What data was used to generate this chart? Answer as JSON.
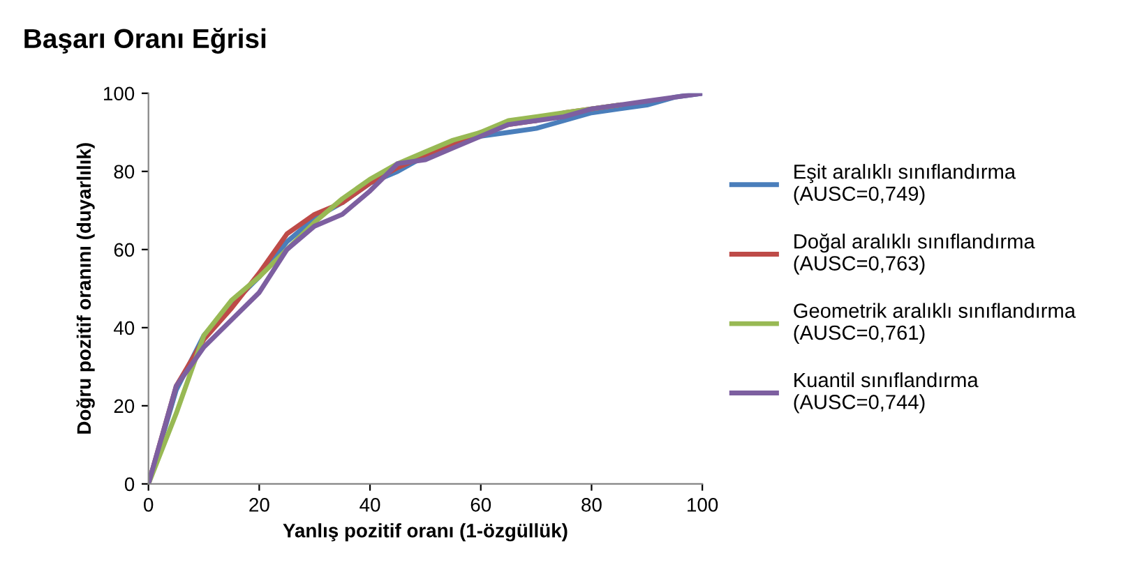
{
  "chart_data": {
    "type": "line",
    "title": "Başarı Oranı Eğrisi",
    "xlabel": "Yanlış pozitif oranı (1-özgüllük)",
    "ylabel": "Doğru pozitif oranını (duyarlılık)",
    "x": [
      0,
      5,
      10,
      15,
      20,
      25,
      30,
      35,
      40,
      45,
      50,
      55,
      60,
      65,
      70,
      75,
      80,
      85,
      90,
      95,
      100
    ],
    "xlim": [
      0,
      100
    ],
    "ylim": [
      0,
      100
    ],
    "xticks": [
      0,
      20,
      40,
      60,
      80,
      100
    ],
    "yticks": [
      0,
      20,
      40,
      60,
      80,
      100
    ],
    "grid": false,
    "legend": "right",
    "marker": "none",
    "line_style": "solid",
    "series": [
      {
        "name": "Eşit aralıklı sınıflandırma\n(AUSC=0,749)",
        "color": "#4a7ebb",
        "values": [
          0,
          24,
          38,
          46,
          53,
          62,
          68,
          72,
          77,
          80,
          84,
          87,
          89,
          90,
          91,
          93,
          95,
          96,
          97,
          99,
          100
        ]
      },
      {
        "name": "Doğal aralıklı sınıflandırma\n(AUSC=0,763)",
        "color": "#be4b48",
        "values": [
          0,
          25,
          37,
          45,
          54,
          64,
          69,
          72,
          77,
          81,
          84,
          87,
          90,
          92,
          93,
          95,
          96,
          97,
          null,
          null,
          null
        ]
      },
      {
        "name": "Geometrik aralıklı sınıflandırma\n(AUSC=0,761)",
        "color": "#98b954",
        "values": [
          0,
          18,
          38,
          47,
          53,
          60,
          67,
          73,
          78,
          82,
          85,
          88,
          90,
          93,
          94,
          95,
          96,
          97,
          null,
          null,
          null
        ]
      },
      {
        "name": "Kuantil sınıflandırma\n(AUSC=0,744)",
        "color": "#7d5fa0",
        "values": [
          0,
          25,
          35,
          42,
          49,
          60,
          66,
          69,
          75,
          82,
          83,
          86,
          89,
          92,
          93,
          94,
          96,
          97,
          98,
          99,
          100
        ]
      }
    ]
  }
}
